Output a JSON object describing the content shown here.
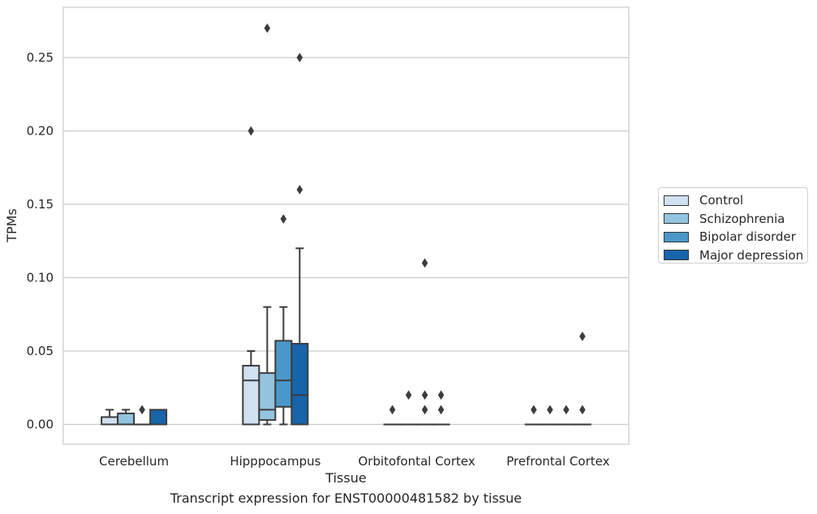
{
  "caption": "Transcript expression for ENST00000481582 by tissue",
  "colors": {
    "Control": "#d0e1f2",
    "Schizophrenia": "#94c4df",
    "Bipolar disorder": "#4a98c9",
    "Major depression": "#1764ab"
  },
  "chart_data": {
    "type": "box",
    "xlabel": "Tissue",
    "ylabel": "TPMs",
    "ylim": [
      -0.013,
      0.285
    ],
    "yticks": [
      0.0,
      0.05,
      0.1,
      0.15,
      0.2,
      0.25
    ],
    "ytick_labels": [
      "0.00",
      "0.05",
      "0.10",
      "0.15",
      "0.20",
      "0.25"
    ],
    "grid": "horizontal",
    "legend_position": "right",
    "categories": [
      "Cerebellum",
      "Hipppocampus",
      "Orbitofontal Cortex",
      "Prefrontal Cortex"
    ],
    "series": [
      {
        "name": "Control",
        "boxes": [
          {
            "q1": 0.0,
            "median": 0.0,
            "q3": 0.005,
            "whislo": 0.0,
            "whishi": 0.01,
            "fliers": []
          },
          {
            "q1": 0.0,
            "median": 0.03,
            "q3": 0.04,
            "whislo": 0.0,
            "whishi": 0.05,
            "fliers": [
              0.2
            ]
          },
          {
            "q1": 0.0,
            "median": 0.0,
            "q3": 0.0,
            "whislo": 0.0,
            "whishi": 0.0,
            "fliers": [
              0.01
            ]
          },
          {
            "q1": 0.0,
            "median": 0.0,
            "q3": 0.0,
            "whislo": 0.0,
            "whishi": 0.0,
            "fliers": [
              0.01
            ]
          }
        ]
      },
      {
        "name": "Schizophrenia",
        "boxes": [
          {
            "q1": 0.0,
            "median": 0.0,
            "q3": 0.0075,
            "whislo": 0.0,
            "whishi": 0.01,
            "fliers": []
          },
          {
            "q1": 0.003,
            "median": 0.01,
            "q3": 0.035,
            "whislo": 0.0,
            "whishi": 0.08,
            "fliers": [
              0.27
            ]
          },
          {
            "q1": 0.0,
            "median": 0.0,
            "q3": 0.0,
            "whislo": 0.0,
            "whishi": 0.0,
            "fliers": [
              0.02
            ]
          },
          {
            "q1": 0.0,
            "median": 0.0,
            "q3": 0.0,
            "whislo": 0.0,
            "whishi": 0.0,
            "fliers": [
              0.01
            ]
          }
        ]
      },
      {
        "name": "Bipolar disorder",
        "boxes": [
          {
            "q1": 0.0,
            "median": 0.0,
            "q3": 0.0,
            "whislo": 0.0,
            "whishi": 0.0,
            "fliers": [
              0.01
            ]
          },
          {
            "q1": 0.012,
            "median": 0.03,
            "q3": 0.057,
            "whislo": 0.0,
            "whishi": 0.08,
            "fliers": [
              0.14
            ]
          },
          {
            "q1": 0.0,
            "median": 0.0,
            "q3": 0.0,
            "whislo": 0.0,
            "whishi": 0.0,
            "fliers": [
              0.01,
              0.02,
              0.11
            ]
          },
          {
            "q1": 0.0,
            "median": 0.0,
            "q3": 0.0,
            "whislo": 0.0,
            "whishi": 0.0,
            "fliers": [
              0.01
            ]
          }
        ]
      },
      {
        "name": "Major depression",
        "boxes": [
          {
            "q1": 0.0,
            "median": 0.0,
            "q3": 0.01,
            "whislo": 0.0,
            "whishi": 0.01,
            "fliers": []
          },
          {
            "q1": 0.0,
            "median": 0.02,
            "q3": 0.055,
            "whislo": 0.0,
            "whishi": 0.12,
            "fliers": [
              0.16,
              0.25
            ]
          },
          {
            "q1": 0.0,
            "median": 0.0,
            "q3": 0.0,
            "whislo": 0.0,
            "whishi": 0.0,
            "fliers": [
              0.01,
              0.02
            ]
          },
          {
            "q1": 0.0,
            "median": 0.0,
            "q3": 0.0,
            "whislo": 0.0,
            "whishi": 0.0,
            "fliers": [
              0.01,
              0.06
            ]
          }
        ]
      }
    ]
  }
}
